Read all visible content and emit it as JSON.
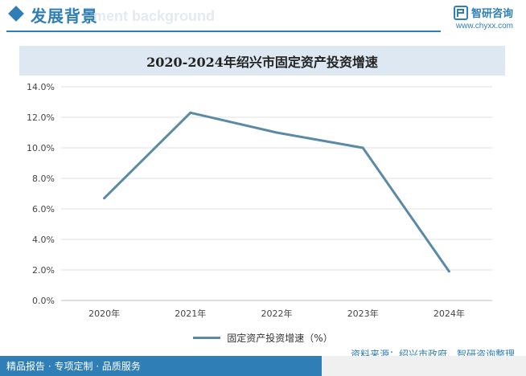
{
  "header": {
    "section_title": "发展背景",
    "section_title_en": "ment background",
    "brand_name": "智研咨询",
    "brand_url": "www.chyxx.com"
  },
  "chart_data": {
    "type": "line",
    "title": "2020-2024年绍兴市固定资产投资增速",
    "categories": [
      "2020年",
      "2021年",
      "2022年",
      "2023年",
      "2024年"
    ],
    "series": [
      {
        "name": "固定资产投资增速（%）",
        "values": [
          6.7,
          12.3,
          11.0,
          10.0,
          1.9
        ],
        "color": "#5b8aa6"
      }
    ],
    "y_ticks": [
      "0.0%",
      "2.0%",
      "4.0%",
      "6.0%",
      "8.0%",
      "10.0%",
      "12.0%",
      "14.0%"
    ],
    "ylim": [
      0,
      14
    ],
    "grid": true,
    "legend_position": "bottom"
  },
  "source": "资料来源：绍兴市政府、智研咨询整理",
  "footer": {
    "text": "精品报告 · 专项定制 · 品质服务"
  }
}
